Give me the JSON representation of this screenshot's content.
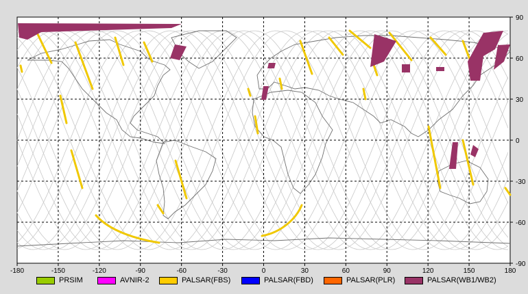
{
  "map": {
    "x_ticks": [
      "-180",
      "-150",
      "-120",
      "-90",
      "-60",
      "-30",
      "0",
      "30",
      "60",
      "90",
      "120",
      "150",
      "180"
    ],
    "y_ticks": [
      "90",
      "60",
      "30",
      "0",
      "-30",
      "-60",
      "-90"
    ],
    "lon_range": [
      -180,
      180
    ],
    "lat_range": [
      -90,
      90
    ],
    "colors": {
      "background": "#ffffff",
      "grid": "#000000",
      "orbit": "#c8c8c8",
      "coast": "#707070",
      "fbs": "#f0c800",
      "wb": "#993366"
    }
  },
  "legend": [
    {
      "label": "PRSIM",
      "color": "#99cc00"
    },
    {
      "label": "AVNIR-2",
      "color": "#ff00ff"
    },
    {
      "label": "PALSAR(FBS)",
      "color": "#ffcc00"
    },
    {
      "label": "PALSAR(FBD)",
      "color": "#0000ff"
    },
    {
      "label": "PALSAR(PLR)",
      "color": "#ff6600"
    },
    {
      "label": "PALSAR(WB1/WB2)",
      "color": "#993366"
    }
  ]
}
